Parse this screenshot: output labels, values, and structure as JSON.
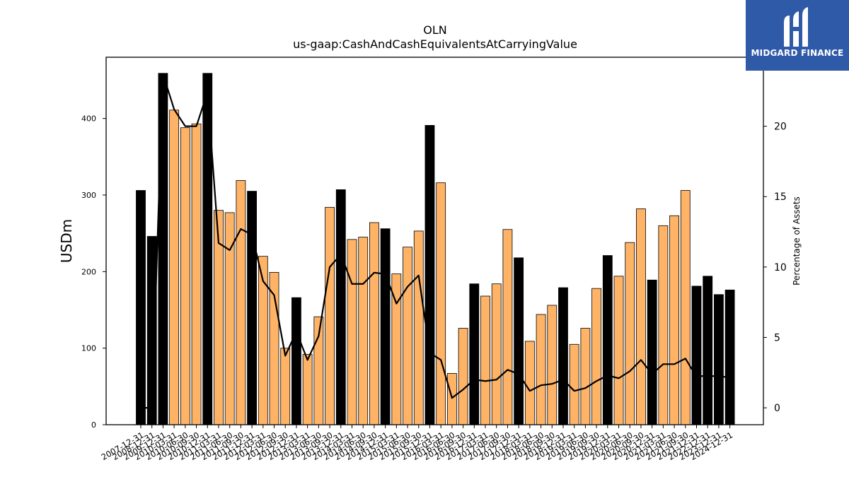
{
  "chart_data": {
    "type": "bar",
    "title": "OLN",
    "subtitle": "us-gaap:CashAndCashEquivalentsAtCarryingValue",
    "ylabel": "USDm",
    "ylabel_right": "Percentage of Assets",
    "ylim": [
      0,
      480
    ],
    "ylim_right": [
      -1.2,
      24.9
    ],
    "yticks": [
      0,
      100,
      200,
      300,
      400
    ],
    "yticks_right": [
      0,
      5,
      10,
      15,
      20
    ],
    "categories": [
      "2007-12-31",
      "2008-12-31",
      "2009-12-31",
      "2010-03-31",
      "2010-06-30",
      "2010-09-30",
      "2010-12-31",
      "2011-03-31",
      "2011-06-30",
      "2011-09-30",
      "2011-12-31",
      "2012-03-31",
      "2012-06-30",
      "2012-09-30",
      "2012-12-31",
      "2013-03-31",
      "2013-06-30",
      "2013-09-30",
      "2013-12-31",
      "2014-03-31",
      "2014-06-30",
      "2014-09-30",
      "2014-12-31",
      "2015-03-31",
      "2015-06-30",
      "2015-09-30",
      "2015-12-31",
      "2016-03-31",
      "2016-06-30",
      "2016-09-30",
      "2016-12-31",
      "2017-03-31",
      "2017-06-30",
      "2017-09-30",
      "2017-12-31",
      "2018-03-31",
      "2018-06-30",
      "2018-09-30",
      "2018-12-31",
      "2019-03-31",
      "2019-06-30",
      "2019-09-30",
      "2019-12-31",
      "2020-03-31",
      "2020-06-30",
      "2020-09-30",
      "2020-12-31",
      "2021-03-31",
      "2021-06-30",
      "2021-09-30",
      "2021-12-31",
      "2022-12-31",
      "2023-12-31",
      "2024-12-31"
    ],
    "values": [
      306,
      246,
      459,
      411,
      388,
      393,
      459,
      280,
      277,
      319,
      305,
      220,
      199,
      100,
      166,
      92,
      141,
      284,
      307,
      242,
      245,
      264,
      256,
      197,
      232,
      253,
      391,
      316,
      67,
      126,
      184,
      168,
      184,
      255,
      218,
      109,
      144,
      156,
      179,
      105,
      126,
      178,
      221,
      194,
      238,
      282,
      189,
      260,
      273,
      306,
      181,
      194,
      170,
      176
    ],
    "year_end": [
      true,
      true,
      true,
      false,
      false,
      false,
      true,
      false,
      false,
      false,
      true,
      false,
      false,
      false,
      true,
      false,
      false,
      false,
      true,
      false,
      false,
      false,
      true,
      false,
      false,
      false,
      true,
      false,
      false,
      false,
      true,
      false,
      false,
      false,
      true,
      false,
      false,
      false,
      true,
      false,
      false,
      false,
      true,
      false,
      false,
      false,
      true,
      false,
      false,
      false,
      true,
      true,
      true,
      true
    ],
    "pct_assets": [
      0,
      0,
      23.7,
      21.2,
      20.0,
      20.0,
      22.4,
      11.7,
      11.2,
      12.7,
      12.3,
      9.0,
      8.0,
      3.7,
      5.4,
      3.4,
      5.1,
      10.0,
      10.9,
      8.8,
      8.8,
      9.6,
      9.5,
      7.4,
      8.6,
      9.4,
      3.9,
      3.4,
      0.7,
      1.3,
      2.0,
      1.9,
      2.0,
      2.7,
      2.4,
      1.2,
      1.6,
      1.7,
      2.0,
      1.2,
      1.4,
      1.9,
      2.3,
      2.1,
      2.6,
      3.4,
      2.4,
      3.1,
      3.1,
      3.5,
      2.2,
      2.3,
      2.2,
      2.2
    ],
    "colors": {
      "year_end": "#000000",
      "quarter": "#ffb366",
      "line": "#000000"
    },
    "grid": false,
    "legend": "none"
  },
  "logo": {
    "text": "MIDGARD FINANCE",
    "color": "#2f5aa8"
  }
}
